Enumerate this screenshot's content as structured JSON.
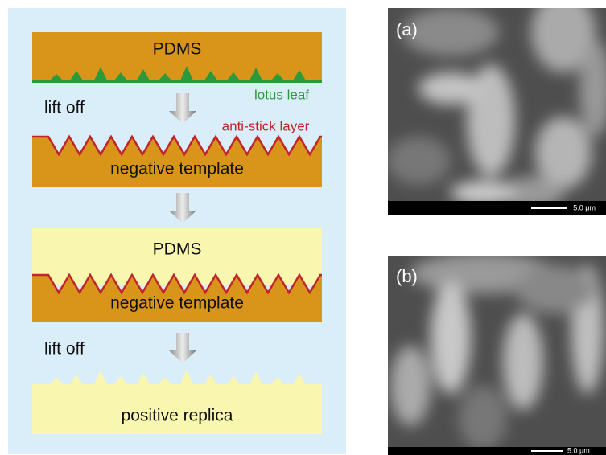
{
  "diagram": {
    "pdms_top": "PDMS",
    "lotus_leaf": "lotus leaf",
    "lift_off_1": "lift off",
    "anti_stick_layer": "anti-stick layer",
    "negative_template_1": "negative template",
    "pdms_middle": "PDMS",
    "negative_template_2": "negative template",
    "lift_off_2": "lift off",
    "positive_replica": "positive replica"
  },
  "images": [
    {
      "label": "(a)",
      "scale_bar": "5.0 μm"
    },
    {
      "label": "(b)",
      "scale_bar": "5.0 μm"
    }
  ]
}
